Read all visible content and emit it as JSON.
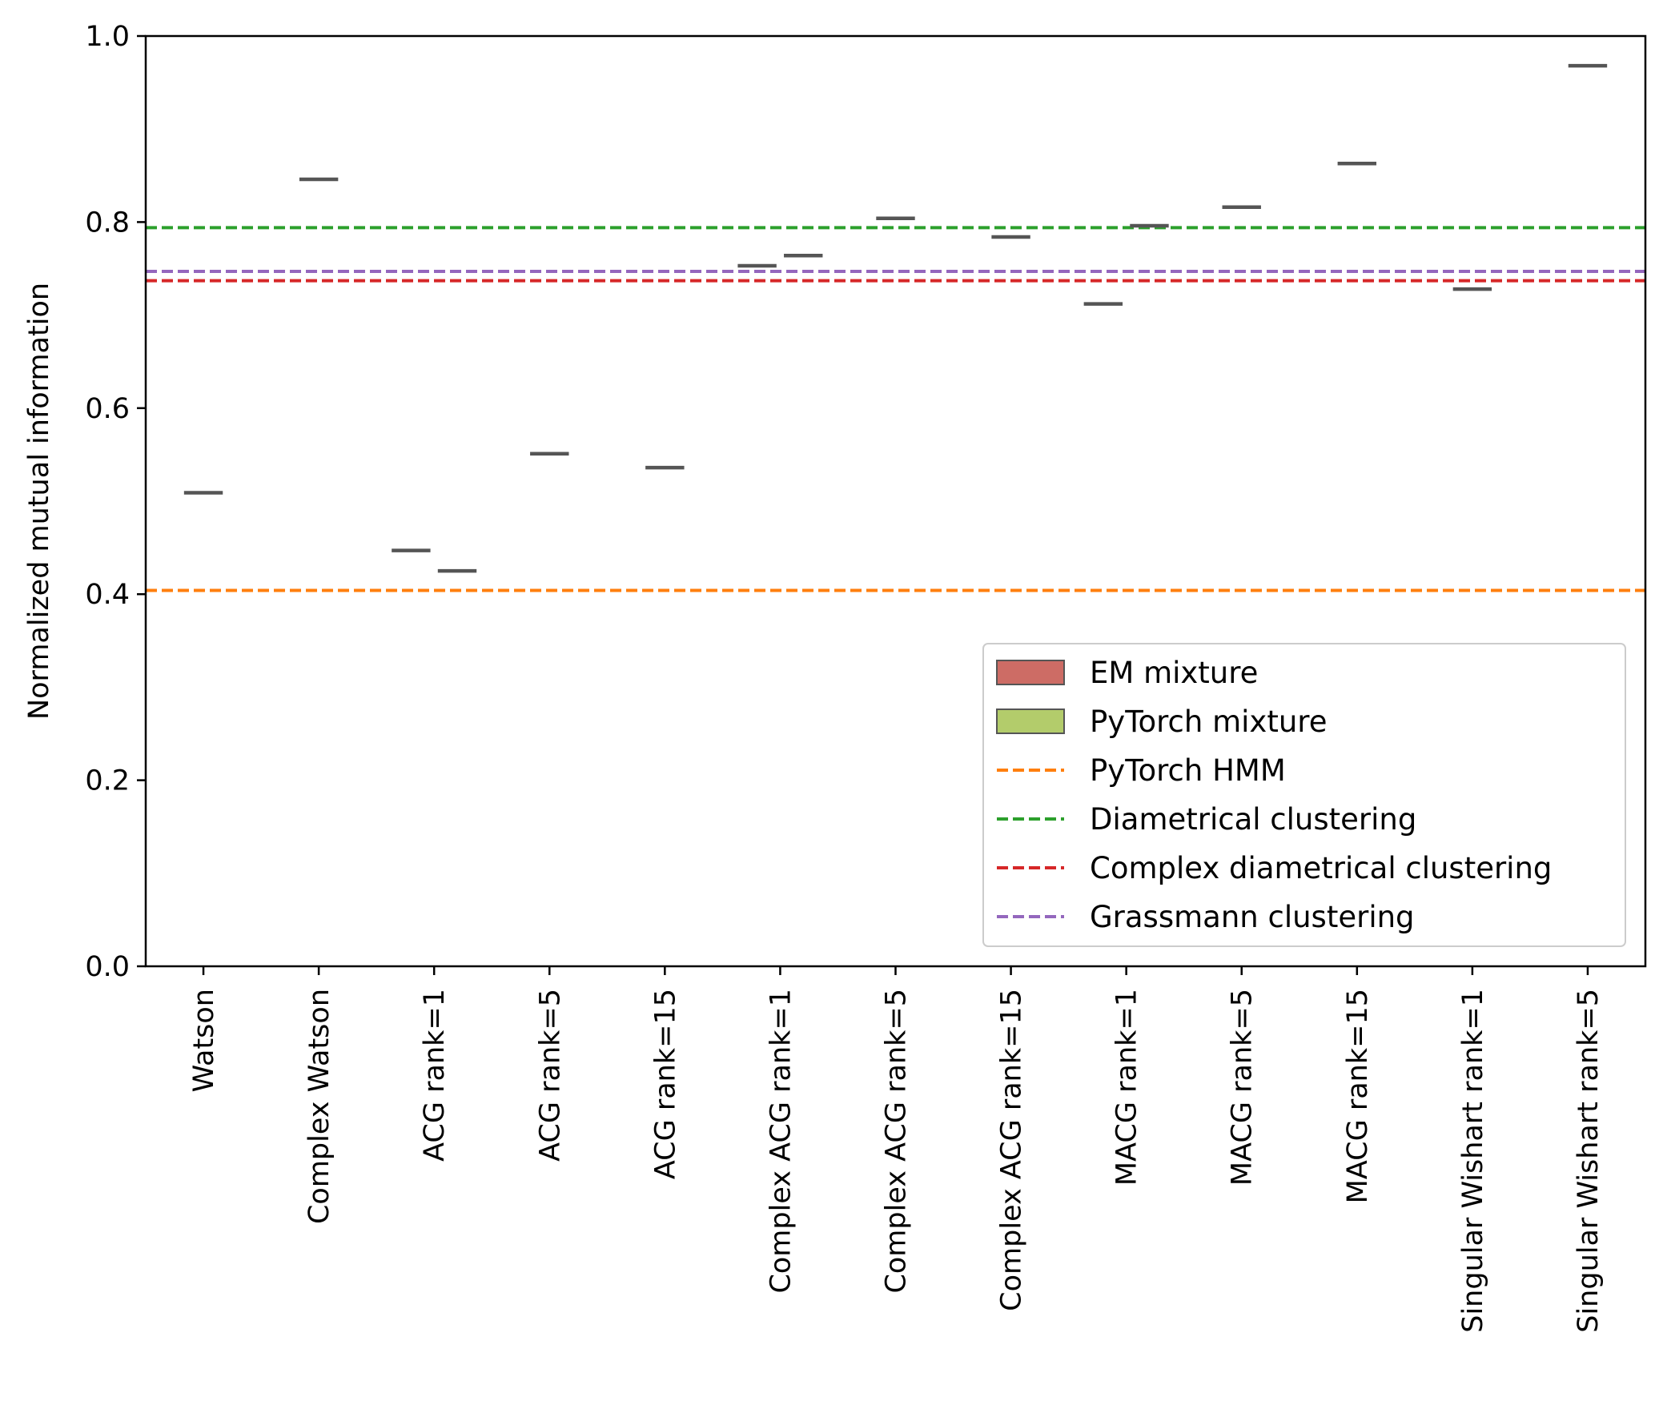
{
  "chart_data": {
    "type": "box",
    "ylabel": "Normalized mutual information",
    "xlabel": "",
    "title": "",
    "ylim": [
      0.0,
      1.0
    ],
    "yticks": [
      "0.0",
      "0.2",
      "0.4",
      "0.6",
      "0.8",
      "1.0"
    ],
    "yticks_values": [
      0.0,
      0.2,
      0.4,
      0.6,
      0.8,
      1.0
    ],
    "grid": false,
    "legend_position": "lower-right",
    "categories": [
      "Watson",
      "Complex Watson",
      "ACG rank=1",
      "ACG rank=5",
      "ACG rank=15",
      "Complex ACG rank=1",
      "Complex ACG rank=5",
      "Complex ACG rank=15",
      "MACG rank=1",
      "MACG rank=5",
      "MACG rank=15",
      "Singular Wishart rank=1",
      "Singular Wishart rank=5"
    ],
    "series": [
      {
        "name": "EM mixture",
        "kind": "box",
        "color": "#cd6c65",
        "values": [
          0.509,
          0.846,
          0.447,
          0.551,
          0.536,
          0.753,
          0.804,
          0.784,
          0.712,
          0.816,
          0.863,
          0.728,
          0.968
        ]
      },
      {
        "name": "PyTorch mixture",
        "kind": "box",
        "color": "#b3cc6b",
        "values": [
          null,
          null,
          0.425,
          null,
          null,
          0.764,
          null,
          null,
          0.796,
          null,
          null,
          null,
          null
        ]
      }
    ],
    "reference_lines": [
      {
        "name": "PyTorch HMM",
        "y": 0.404,
        "color": "#ff7f0e"
      },
      {
        "name": "Diametrical clustering",
        "y": 0.794,
        "color": "#2ca02c"
      },
      {
        "name": "Complex diametrical clustering",
        "y": 0.737,
        "color": "#d62728"
      },
      {
        "name": "Grassmann clustering",
        "y": 0.747,
        "color": "#9467bd"
      }
    ],
    "legend": [
      {
        "label": "EM mixture",
        "kind": "patch",
        "color": "#cd6c65"
      },
      {
        "label": "PyTorch mixture",
        "kind": "patch",
        "color": "#b3cc6b"
      },
      {
        "label": "PyTorch HMM",
        "kind": "dashed",
        "color": "#ff7f0e"
      },
      {
        "label": "Diametrical clustering",
        "kind": "dashed",
        "color": "#2ca02c"
      },
      {
        "label": "Complex diametrical clustering",
        "kind": "dashed",
        "color": "#d62728"
      },
      {
        "label": "Grassmann clustering",
        "kind": "dashed",
        "color": "#9467bd"
      }
    ],
    "median_color": "#555555"
  }
}
